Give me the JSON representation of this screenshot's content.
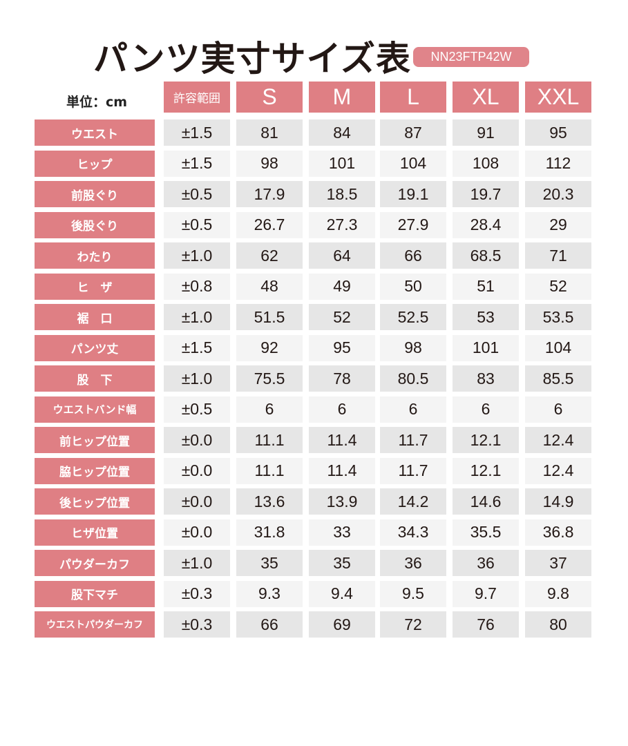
{
  "header": {
    "title": "パンツ実寸サイズ表",
    "code": "NN23FTP42W",
    "unit": "単位：cm"
  },
  "table": {
    "columns": [
      "許容範囲",
      "S",
      "M",
      "L",
      "XL",
      "XXL"
    ],
    "rows": [
      [
        "ウエスト",
        "±1.5",
        "81",
        "84",
        "87",
        "91",
        "95"
      ],
      [
        "ヒップ",
        "±1.5",
        "98",
        "101",
        "104",
        "108",
        "112"
      ],
      [
        "前股ぐり",
        "±0.5",
        "17.9",
        "18.5",
        "19.1",
        "19.7",
        "20.3"
      ],
      [
        "後股ぐり",
        "±0.5",
        "26.7",
        "27.3",
        "27.9",
        "28.4",
        "29"
      ],
      [
        "わたり",
        "±1.0",
        "62",
        "64",
        "66",
        "68.5",
        "71"
      ],
      [
        "ヒ　ザ",
        "±0.8",
        "48",
        "49",
        "50",
        "51",
        "52"
      ],
      [
        "裾　口",
        "±1.0",
        "51.5",
        "52",
        "52.5",
        "53",
        "53.5"
      ],
      [
        "パンツ丈",
        "±1.5",
        "92",
        "95",
        "98",
        "101",
        "104"
      ],
      [
        "股　下",
        "±1.0",
        "75.5",
        "78",
        "80.5",
        "83",
        "85.5"
      ],
      [
        "ウエストバンド幅",
        "±0.5",
        "6",
        "6",
        "6",
        "6",
        "6"
      ],
      [
        "前ヒップ位置",
        "±0.0",
        "11.1",
        "11.4",
        "11.7",
        "12.1",
        "12.4"
      ],
      [
        "脇ヒップ位置",
        "±0.0",
        "11.1",
        "11.4",
        "11.7",
        "12.1",
        "12.4"
      ],
      [
        "後ヒップ位置",
        "±0.0",
        "13.6",
        "13.9",
        "14.2",
        "14.6",
        "14.9"
      ],
      [
        "ヒザ位置",
        "±0.0",
        "31.8",
        "33",
        "34.3",
        "35.5",
        "36.8"
      ],
      [
        "パウダーカフ",
        "±1.0",
        "35",
        "35",
        "36",
        "36",
        "37"
      ],
      [
        "股下マチ",
        "±0.3",
        "9.3",
        "9.4",
        "9.5",
        "9.7",
        "9.8"
      ],
      [
        "ウエストパウダーカフ",
        "±0.3",
        "66",
        "69",
        "72",
        "76",
        "80"
      ]
    ]
  }
}
